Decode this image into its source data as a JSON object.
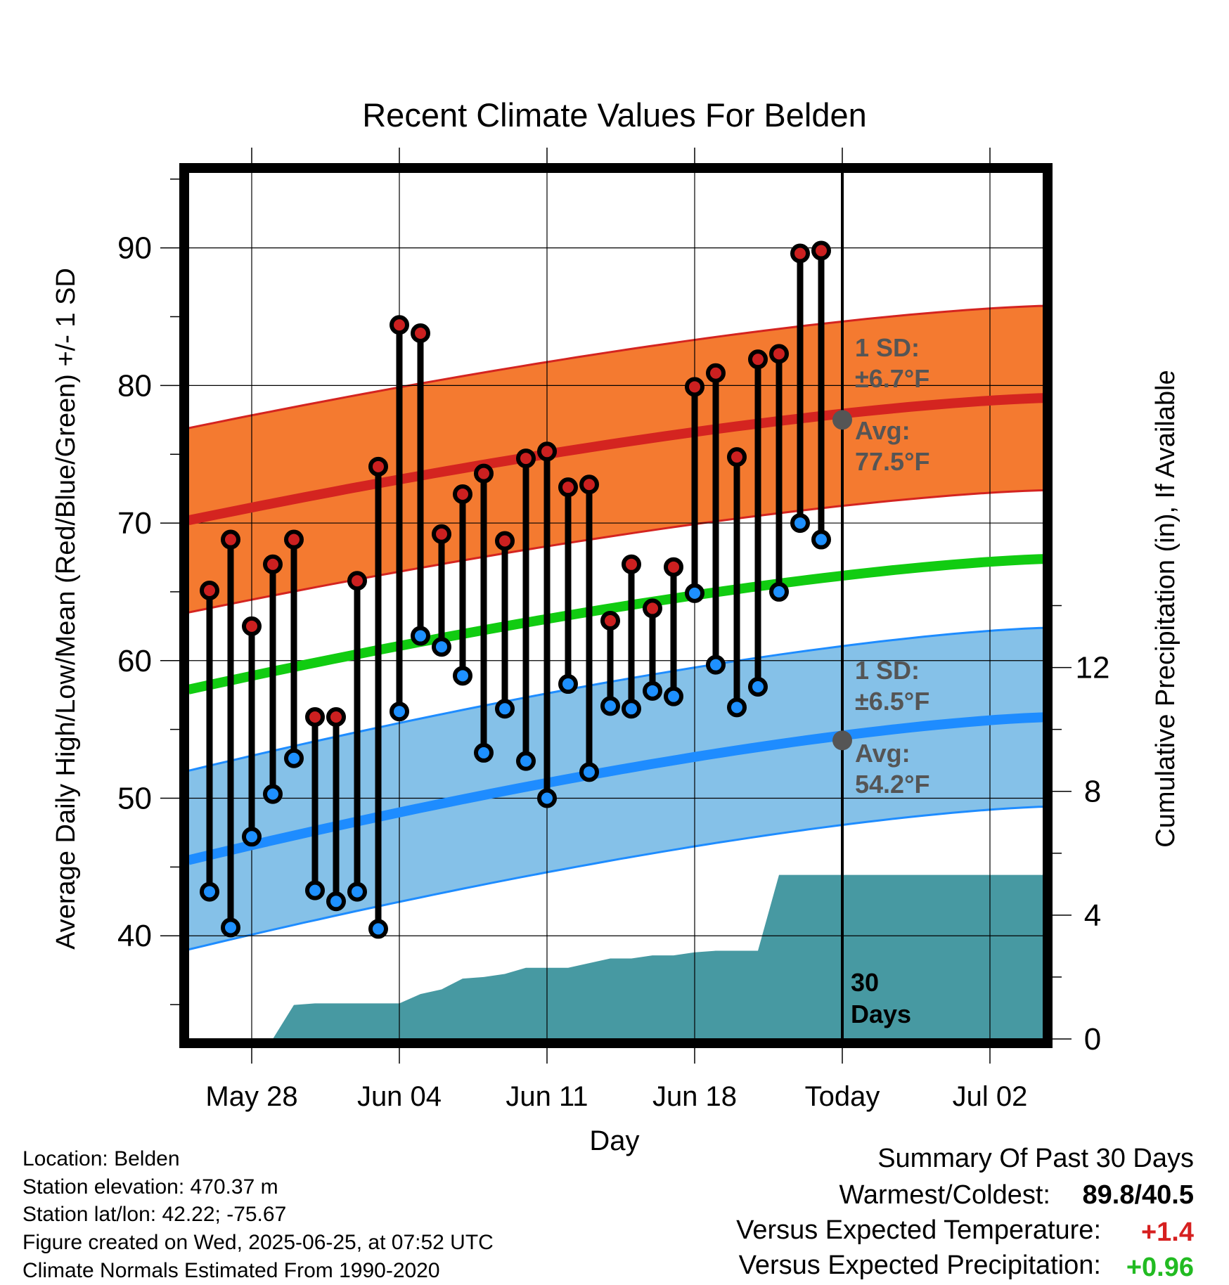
{
  "chart_data": {
    "type": "line",
    "title": "Recent Climate Values For Belden",
    "xlabel": "Day",
    "ylabel_left": "Average Daily High/Low/Mean (Red/Blue/Green) +/- 1 SD",
    "ylabel_right": "Cumulative Precipitation (in), If Available",
    "x_range": [
      "2025-05-25",
      "2025-07-05"
    ],
    "ylim_left": [
      32.5,
      95.5
    ],
    "ylim_right": [
      0,
      28
    ],
    "grid": true,
    "x_ticks": [
      {
        "date": "2025-05-28",
        "label": "May 28"
      },
      {
        "date": "2025-06-04",
        "label": "Jun 04"
      },
      {
        "date": "2025-06-11",
        "label": "Jun 11"
      },
      {
        "date": "2025-06-18",
        "label": "Jun 18"
      },
      {
        "date": "2025-06-25",
        "label": "Today"
      },
      {
        "date": "2025-07-02",
        "label": "Jul 02"
      }
    ],
    "y_ticks_left": [
      40,
      50,
      60,
      70,
      80,
      90
    ],
    "y_ticks_right": [
      0,
      4,
      8,
      12
    ],
    "normal_high": {
      "start": 70.2,
      "end": 79.1,
      "sd": 6.7
    },
    "normal_low": {
      "start": 45.5,
      "end": 55.9,
      "sd": 6.5
    },
    "normal_mean": {
      "start": 57.9,
      "end": 67.4
    },
    "today_date": "2025-06-25",
    "today_label": "30\nDays",
    "high_annotation": {
      "sd_label": "1 SD:",
      "sd_value": "±6.7°F",
      "avg_label": "Avg:",
      "avg_value": "77.5°F",
      "avg": 77.5
    },
    "low_annotation": {
      "sd_label": "1 SD:",
      "sd_value": "±6.5°F",
      "avg_label": "Avg:",
      "avg_value": "54.2°F",
      "avg": 54.2
    },
    "daily": [
      {
        "date": "2025-05-26",
        "high": 65.1,
        "low": 43.2
      },
      {
        "date": "2025-05-27",
        "high": 68.8,
        "low": 40.6
      },
      {
        "date": "2025-05-28",
        "high": 62.5,
        "low": 47.2
      },
      {
        "date": "2025-05-29",
        "high": 67.0,
        "low": 50.3
      },
      {
        "date": "2025-05-30",
        "high": 68.8,
        "low": 52.9
      },
      {
        "date": "2025-05-31",
        "high": 55.9,
        "low": 43.3
      },
      {
        "date": "2025-06-01",
        "high": 55.9,
        "low": 42.5
      },
      {
        "date": "2025-06-02",
        "high": 65.8,
        "low": 43.2
      },
      {
        "date": "2025-06-03",
        "high": 74.1,
        "low": 40.5
      },
      {
        "date": "2025-06-04",
        "high": 84.4,
        "low": 56.3
      },
      {
        "date": "2025-06-05",
        "high": 83.8,
        "low": 61.8
      },
      {
        "date": "2025-06-06",
        "high": 69.2,
        "low": 61.0
      },
      {
        "date": "2025-06-07",
        "high": 72.1,
        "low": 58.9
      },
      {
        "date": "2025-06-08",
        "high": 73.6,
        "low": 53.3
      },
      {
        "date": "2025-06-09",
        "high": 68.7,
        "low": 56.5
      },
      {
        "date": "2025-06-10",
        "high": 74.7,
        "low": 52.7
      },
      {
        "date": "2025-06-11",
        "high": 75.2,
        "low": 50.0
      },
      {
        "date": "2025-06-12",
        "high": 72.6,
        "low": 58.3
      },
      {
        "date": "2025-06-13",
        "high": 72.8,
        "low": 51.9
      },
      {
        "date": "2025-06-14",
        "high": 62.9,
        "low": 56.7
      },
      {
        "date": "2025-06-15",
        "high": 67.0,
        "low": 56.5
      },
      {
        "date": "2025-06-16",
        "high": 63.8,
        "low": 57.8
      },
      {
        "date": "2025-06-17",
        "high": 66.8,
        "low": 57.4
      },
      {
        "date": "2025-06-18",
        "high": 79.9,
        "low": 64.9
      },
      {
        "date": "2025-06-19",
        "high": 80.9,
        "low": 59.7
      },
      {
        "date": "2025-06-20",
        "high": 74.8,
        "low": 56.6
      },
      {
        "date": "2025-06-21",
        "high": 81.9,
        "low": 58.1
      },
      {
        "date": "2025-06-22",
        "high": 82.3,
        "low": 65.0
      },
      {
        "date": "2025-06-23",
        "high": 89.6,
        "low": 70.0
      },
      {
        "date": "2025-06-24",
        "high": 89.8,
        "low": 68.8
      }
    ],
    "precip_cumulative": [
      {
        "date": "2025-05-27",
        "value": 0.0
      },
      {
        "date": "2025-05-29",
        "value": 0.0
      },
      {
        "date": "2025-05-30",
        "value": 1.1
      },
      {
        "date": "2025-05-31",
        "value": 1.15
      },
      {
        "date": "2025-06-03",
        "value": 1.15
      },
      {
        "date": "2025-06-04",
        "value": 1.15
      },
      {
        "date": "2025-06-05",
        "value": 1.45
      },
      {
        "date": "2025-06-06",
        "value": 1.6
      },
      {
        "date": "2025-06-07",
        "value": 1.95
      },
      {
        "date": "2025-06-08",
        "value": 2.0
      },
      {
        "date": "2025-06-09",
        "value": 2.1
      },
      {
        "date": "2025-06-10",
        "value": 2.3
      },
      {
        "date": "2025-06-11",
        "value": 2.3
      },
      {
        "date": "2025-06-12",
        "value": 2.3
      },
      {
        "date": "2025-06-13",
        "value": 2.45
      },
      {
        "date": "2025-06-14",
        "value": 2.6
      },
      {
        "date": "2025-06-15",
        "value": 2.6
      },
      {
        "date": "2025-06-16",
        "value": 2.7
      },
      {
        "date": "2025-06-17",
        "value": 2.7
      },
      {
        "date": "2025-06-18",
        "value": 2.8
      },
      {
        "date": "2025-06-19",
        "value": 2.85
      },
      {
        "date": "2025-06-21",
        "value": 2.85
      },
      {
        "date": "2025-06-22",
        "value": 5.3
      },
      {
        "date": "2025-07-05",
        "value": 5.3
      }
    ]
  },
  "info": {
    "location": "Location: Belden",
    "elevation": "Station elevation: 470.37 m",
    "latlon": "Station lat/lon: 42.22; -75.67",
    "created": "Figure created on Wed, 2025-06-25, at 07:52 UTC",
    "normals": "Climate Normals Estimated From 1990-2020"
  },
  "summary": {
    "heading": "Summary Of Past 30 Days",
    "warmest_label": "Warmest/Coldest:",
    "warmest_value": "89.8/40.5",
    "temp_label": "Versus Expected Temperature:",
    "temp_value": "+1.4",
    "precip_label": "Versus Expected Precipitation:",
    "precip_value": "+0.96"
  },
  "colors": {
    "high_band": "#f47a30",
    "high_line": "#d42420",
    "low_band": "#85c1e8",
    "low_line": "#1e8cff",
    "mean_line": "#11cc11",
    "precip": "#4799a2",
    "high_marker": "#cc2020",
    "low_marker": "#1e90ff",
    "annotation": "#555555",
    "temp_value": "#d62020",
    "precip_value": "#22bb22"
  }
}
